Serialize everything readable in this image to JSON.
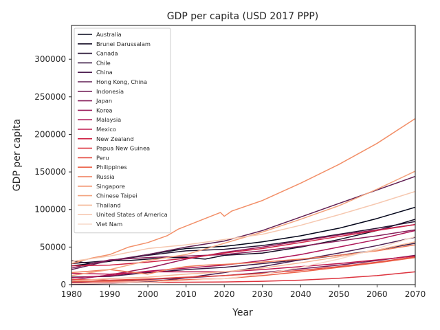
{
  "chart_data": {
    "type": "line",
    "title": "GDP per capita (USD 2017 PPP)",
    "xlabel": "Year",
    "ylabel": "GDP per capita",
    "xlim": [
      1980,
      2070
    ],
    "ylim": [
      0,
      345000
    ],
    "xticks": [
      1980,
      1990,
      2000,
      2010,
      2020,
      2030,
      2040,
      2050,
      2060,
      2070
    ],
    "yticks": [
      0,
      50000,
      100000,
      150000,
      200000,
      250000,
      300000
    ],
    "ytick_labels": [
      "0",
      "50000",
      "100000",
      "150000",
      "200000",
      "250000",
      "300000"
    ],
    "grid": false,
    "legend_position": "upper-left",
    "series": [
      {
        "name": "Australia",
        "color": "#03051a",
        "x": [
          1980,
          1990,
          2000,
          2010,
          2020,
          2022,
          2030,
          2040,
          2050,
          2060,
          2070
        ],
        "y": [
          25000,
          31000,
          40000,
          48000,
          51000,
          52000,
          57000,
          65000,
          75000,
          88000,
          103000
        ]
      },
      {
        "name": "Brunei Darussalam",
        "color": "#150e26",
        "x": [
          1980,
          1985,
          1990,
          1995,
          2000,
          2005,
          2010,
          2015,
          2020,
          2030,
          2040,
          2050,
          2060,
          2070
        ],
        "y": [
          32000,
          28000,
          32000,
          32000,
          34000,
          36000,
          36000,
          34000,
          39000,
          42000,
          50000,
          60000,
          72000,
          87000
        ]
      },
      {
        "name": "Canada",
        "color": "#281535",
        "x": [
          1980,
          1990,
          2000,
          2010,
          2020,
          2030,
          2040,
          2050,
          2060,
          2070
        ],
        "y": [
          28000,
          32000,
          39000,
          45000,
          47000,
          52000,
          59000,
          67000,
          75000,
          84000
        ]
      },
      {
        "name": "Chile",
        "color": "#3b1a45",
        "x": [
          1980,
          1990,
          2000,
          2010,
          2020,
          2030,
          2040,
          2050,
          2060,
          2070
        ],
        "y": [
          10000,
          11000,
          16000,
          20000,
          23000,
          28000,
          33000,
          39000,
          46000,
          55000
        ]
      },
      {
        "name": "China",
        "color": "#4c1d4f",
        "x": [
          1980,
          1990,
          2000,
          2010,
          2020,
          2030,
          2040,
          2050,
          2060,
          2070
        ],
        "y": [
          700,
          1500,
          3500,
          9000,
          16000,
          24000,
          33000,
          42000,
          52000,
          63000
        ]
      },
      {
        "name": "Hong Kong, China",
        "color": "#611f53",
        "x": [
          1980,
          1990,
          2000,
          2010,
          2020,
          2030,
          2040,
          2050,
          2060,
          2070
        ],
        "y": [
          20000,
          32000,
          40000,
          50000,
          58000,
          72000,
          90000,
          108000,
          126000,
          144000
        ]
      },
      {
        "name": "Indonesia",
        "color": "#731f57",
        "x": [
          1980,
          1990,
          2000,
          2010,
          2020,
          2030,
          2040,
          2050,
          2060,
          2070
        ],
        "y": [
          3500,
          5000,
          7000,
          9000,
          12000,
          16000,
          21000,
          26000,
          32000,
          39000
        ]
      },
      {
        "name": "Japan",
        "color": "#871e5a",
        "x": [
          1980,
          1990,
          2000,
          2010,
          2020,
          2030,
          2040,
          2050,
          2060,
          2070
        ],
        "y": [
          22000,
          33000,
          36000,
          38000,
          40000,
          45000,
          51000,
          58000,
          65000,
          73000
        ]
      },
      {
        "name": "Korea",
        "color": "#9a1b5b",
        "x": [
          1980,
          1990,
          2000,
          2010,
          2020,
          2030,
          2040,
          2050,
          2060,
          2070
        ],
        "y": [
          6000,
          13000,
          22000,
          34000,
          43000,
          50000,
          58000,
          66000,
          73000,
          80000
        ]
      },
      {
        "name": "Malaysia",
        "color": "#ae1759",
        "x": [
          1980,
          1990,
          2000,
          2010,
          2020,
          2030,
          2040,
          2050,
          2060,
          2070
        ],
        "y": [
          9000,
          12000,
          18000,
          22000,
          26000,
          32000,
          40000,
          50000,
          60000,
          72000
        ]
      },
      {
        "name": "Mexico",
        "color": "#c0184f",
        "x": [
          1980,
          1990,
          2000,
          2010,
          2020,
          2030,
          2040,
          2050,
          2060,
          2070
        ],
        "y": [
          15000,
          14000,
          17000,
          17000,
          17000,
          20000,
          24000,
          28000,
          33000,
          38000
        ]
      },
      {
        "name": "New Zealand",
        "color": "#cf2345",
        "x": [
          1980,
          1990,
          2000,
          2010,
          2020,
          2030,
          2040,
          2050,
          2060,
          2070
        ],
        "y": [
          25000,
          26000,
          30000,
          35000,
          42000,
          48000,
          56000,
          64000,
          72000,
          80000
        ]
      },
      {
        "name": "Papua New Guinea",
        "color": "#dd343f",
        "x": [
          1980,
          1990,
          2000,
          2010,
          2020,
          2030,
          2040,
          2050,
          2060,
          2070
        ],
        "y": [
          2500,
          2600,
          2800,
          3200,
          3500,
          4500,
          6000,
          8500,
          12000,
          17000
        ]
      },
      {
        "name": "Peru",
        "color": "#e54a40",
        "x": [
          1980,
          1990,
          2000,
          2010,
          2020,
          2030,
          2040,
          2050,
          2060,
          2070
        ],
        "y": [
          7000,
          6000,
          7500,
          10000,
          12000,
          15000,
          19000,
          24000,
          30000,
          37000
        ]
      },
      {
        "name": "Philippines",
        "color": "#eb6147",
        "x": [
          1980,
          1990,
          2000,
          2010,
          2020,
          2030,
          2040,
          2050,
          2060,
          2070
        ],
        "y": [
          4500,
          4500,
          5000,
          6500,
          8000,
          12000,
          17000,
          23000,
          29000,
          36000
        ]
      },
      {
        "name": "Russia",
        "color": "#ef7a57",
        "x": [
          1980,
          1990,
          2000,
          2005,
          2010,
          2015,
          2020,
          2030,
          2040,
          2050,
          2060,
          2070
        ],
        "y": [
          16000,
          20000,
          14000,
          20000,
          24000,
          26000,
          27000,
          30000,
          34000,
          39000,
          45000,
          53000
        ]
      },
      {
        "name": "Singapore",
        "color": "#f28f68",
        "x": [
          1980,
          1985,
          1990,
          1995,
          2000,
          2005,
          2008,
          2010,
          2015,
          2019,
          2020,
          2022,
          2030,
          2040,
          2050,
          2060,
          2070
        ],
        "y": [
          28000,
          35000,
          40000,
          50000,
          56000,
          65000,
          74000,
          78000,
          88000,
          96000,
          91000,
          98000,
          112000,
          135000,
          160000,
          188000,
          221000
        ]
      },
      {
        "name": "Chinese Taipei",
        "color": "#f3a37e",
        "x": [
          1980,
          1990,
          2000,
          2010,
          2020,
          2030,
          2040,
          2050,
          2060,
          2070
        ],
        "y": [
          12000,
          20000,
          32000,
          40000,
          55000,
          70000,
          87000,
          105000,
          127000,
          151000
        ]
      },
      {
        "name": "Thailand",
        "color": "#f5b797",
        "x": [
          1980,
          1990,
          2000,
          2010,
          2020,
          2030,
          2040,
          2050,
          2060,
          2070
        ],
        "y": [
          5000,
          8000,
          10000,
          14000,
          17000,
          22000,
          29000,
          37000,
          46000,
          57000
        ]
      },
      {
        "name": "United States of America",
        "color": "#f6c8b0",
        "x": [
          1980,
          1990,
          2000,
          2010,
          2020,
          2030,
          2040,
          2050,
          2060,
          2070
        ],
        "y": [
          31000,
          38000,
          48000,
          53000,
          60000,
          67000,
          79000,
          93000,
          108000,
          124000
        ]
      },
      {
        "name": "Viet Nam",
        "color": "#f7d9c8",
        "x": [
          1980,
          1990,
          2000,
          2010,
          2020,
          2030,
          2040,
          2050,
          2060,
          2070
        ],
        "y": [
          1500,
          1800,
          3000,
          5500,
          8000,
          14000,
          23000,
          34000,
          48000,
          64000
        ]
      }
    ]
  }
}
